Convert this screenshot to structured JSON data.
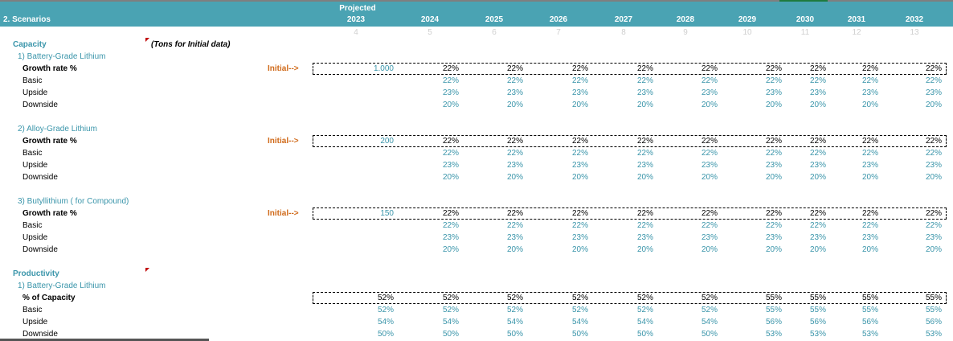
{
  "header": {
    "projected": "Projected",
    "title": "2. Scenarios",
    "years": [
      "2023",
      "2024",
      "2025",
      "2026",
      "2027",
      "2028",
      "2029",
      "2030",
      "2031",
      "2032"
    ],
    "indices": [
      "4",
      "5",
      "6",
      "7",
      "8",
      "9",
      "10",
      "11",
      "12",
      "13"
    ]
  },
  "capacity": {
    "title": "Capacity",
    "note": "(Tons for Initial data)"
  },
  "initial_label": "Initial-->",
  "productivity": {
    "title": "Productivity"
  },
  "groups": [
    {
      "sub": "1) Battery-Grade Lithium",
      "label": "Growth rate %",
      "initial": "1.000",
      "main": [
        "22%",
        "22%",
        "22%",
        "22%",
        "22%",
        "22%",
        "22%",
        "22%",
        "22%"
      ],
      "rows": [
        {
          "label": "Basic",
          "values": [
            "22%",
            "22%",
            "22%",
            "22%",
            "22%",
            "22%",
            "22%",
            "22%",
            "22%"
          ]
        },
        {
          "label": "Upside",
          "values": [
            "23%",
            "23%",
            "23%",
            "23%",
            "23%",
            "23%",
            "23%",
            "23%",
            "23%"
          ]
        },
        {
          "label": "Downside",
          "values": [
            "20%",
            "20%",
            "20%",
            "20%",
            "20%",
            "20%",
            "20%",
            "20%",
            "20%"
          ]
        }
      ]
    },
    {
      "sub": "2) Alloy-Grade Lithium",
      "label": "Growth rate %",
      "initial": "200",
      "main": [
        "22%",
        "22%",
        "22%",
        "22%",
        "22%",
        "22%",
        "22%",
        "22%",
        "22%"
      ],
      "rows": [
        {
          "label": "Basic",
          "values": [
            "22%",
            "22%",
            "22%",
            "22%",
            "22%",
            "22%",
            "22%",
            "22%",
            "22%"
          ]
        },
        {
          "label": "Upside",
          "values": [
            "23%",
            "23%",
            "23%",
            "23%",
            "23%",
            "23%",
            "23%",
            "23%",
            "23%"
          ]
        },
        {
          "label": "Downside",
          "values": [
            "20%",
            "20%",
            "20%",
            "20%",
            "20%",
            "20%",
            "20%",
            "20%",
            "20%"
          ]
        }
      ]
    },
    {
      "sub": "3) Butyllithium ( for Compound)",
      "label": "Growth rate %",
      "initial": "150",
      "main": [
        "22%",
        "22%",
        "22%",
        "22%",
        "22%",
        "22%",
        "22%",
        "22%",
        "22%"
      ],
      "rows": [
        {
          "label": "Basic",
          "values": [
            "22%",
            "22%",
            "22%",
            "22%",
            "22%",
            "22%",
            "22%",
            "22%",
            "22%"
          ]
        },
        {
          "label": "Upside",
          "values": [
            "23%",
            "23%",
            "23%",
            "23%",
            "23%",
            "23%",
            "23%",
            "23%",
            "23%"
          ]
        },
        {
          "label": "Downside",
          "values": [
            "20%",
            "20%",
            "20%",
            "20%",
            "20%",
            "20%",
            "20%",
            "20%",
            "20%"
          ]
        }
      ]
    }
  ],
  "prod_group": {
    "sub": "1) Battery-Grade Lithium",
    "label": "% of Capacity",
    "main": [
      "52%",
      "52%",
      "52%",
      "52%",
      "52%",
      "52%",
      "55%",
      "55%",
      "55%",
      "55%"
    ],
    "rows": [
      {
        "label": "Basic",
        "values": [
          "52%",
          "52%",
          "52%",
          "52%",
          "52%",
          "52%",
          "55%",
          "55%",
          "55%",
          "55%"
        ]
      },
      {
        "label": "Upside",
        "values": [
          "54%",
          "54%",
          "54%",
          "54%",
          "54%",
          "54%",
          "56%",
          "56%",
          "56%",
          "56%"
        ]
      },
      {
        "label": "Downside",
        "values": [
          "50%",
          "50%",
          "50%",
          "50%",
          "50%",
          "50%",
          "53%",
          "53%",
          "53%",
          "53%"
        ]
      }
    ]
  }
}
